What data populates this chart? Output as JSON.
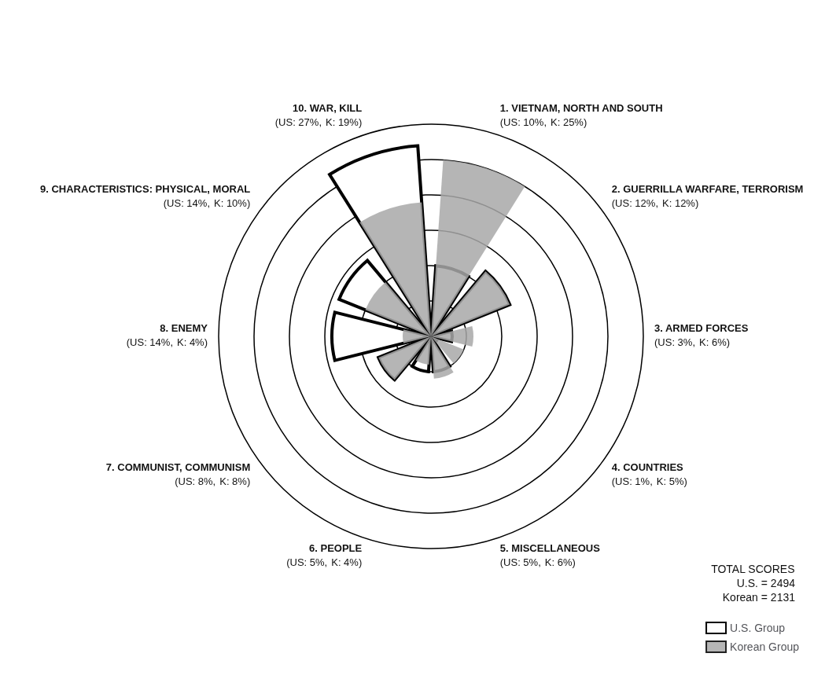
{
  "chart_data": {
    "type": "other",
    "categories": [
      "1. VIETNAM, NORTH AND SOUTH",
      "2. GUERRILLA WARFARE, TERRORISM",
      "3. ARMED FORCES",
      "4. COUNTRIES",
      "5. MISCELLANEOUS",
      "6. PEOPLE",
      "7. COMMUNIST, COMMUNISM",
      "8. ENEMY",
      "9. CHARACTERISTICS: PHYSICAL, MORAL",
      "10. WAR, KILL"
    ],
    "series": [
      {
        "name": "U.S. Group",
        "color": "#ffffff",
        "values": [
          10,
          12,
          3,
          1,
          5,
          5,
          8,
          14,
          14,
          27
        ],
        "value_labels": [
          "(US: 10%,",
          "(US: 12%,",
          "(US: 3%,",
          "(US: 1%,",
          "(US: 5%,",
          "(US: 5%,",
          "(US: 8%,",
          "(US: 14%,",
          "(US: 14%,",
          "(US: 27%,"
        ]
      },
      {
        "name": "Korean Group",
        "color": "#a8a8a8",
        "values": [
          25,
          12,
          6,
          5,
          6,
          4,
          8,
          4,
          10,
          19
        ],
        "value_labels": [
          "K: 25%)",
          "K: 12%)",
          "K: 6%)",
          "K: 5%)",
          "K: 6%)",
          "K: 4%)",
          "K: 8%)",
          "K: 4%)",
          "K: 10%)",
          "K: 19%)"
        ]
      }
    ],
    "legend": "bottom right",
    "annotations": [
      "TOTAL SCORES",
      "U.S. = 2494",
      "Korean = 2131"
    ]
  }
}
